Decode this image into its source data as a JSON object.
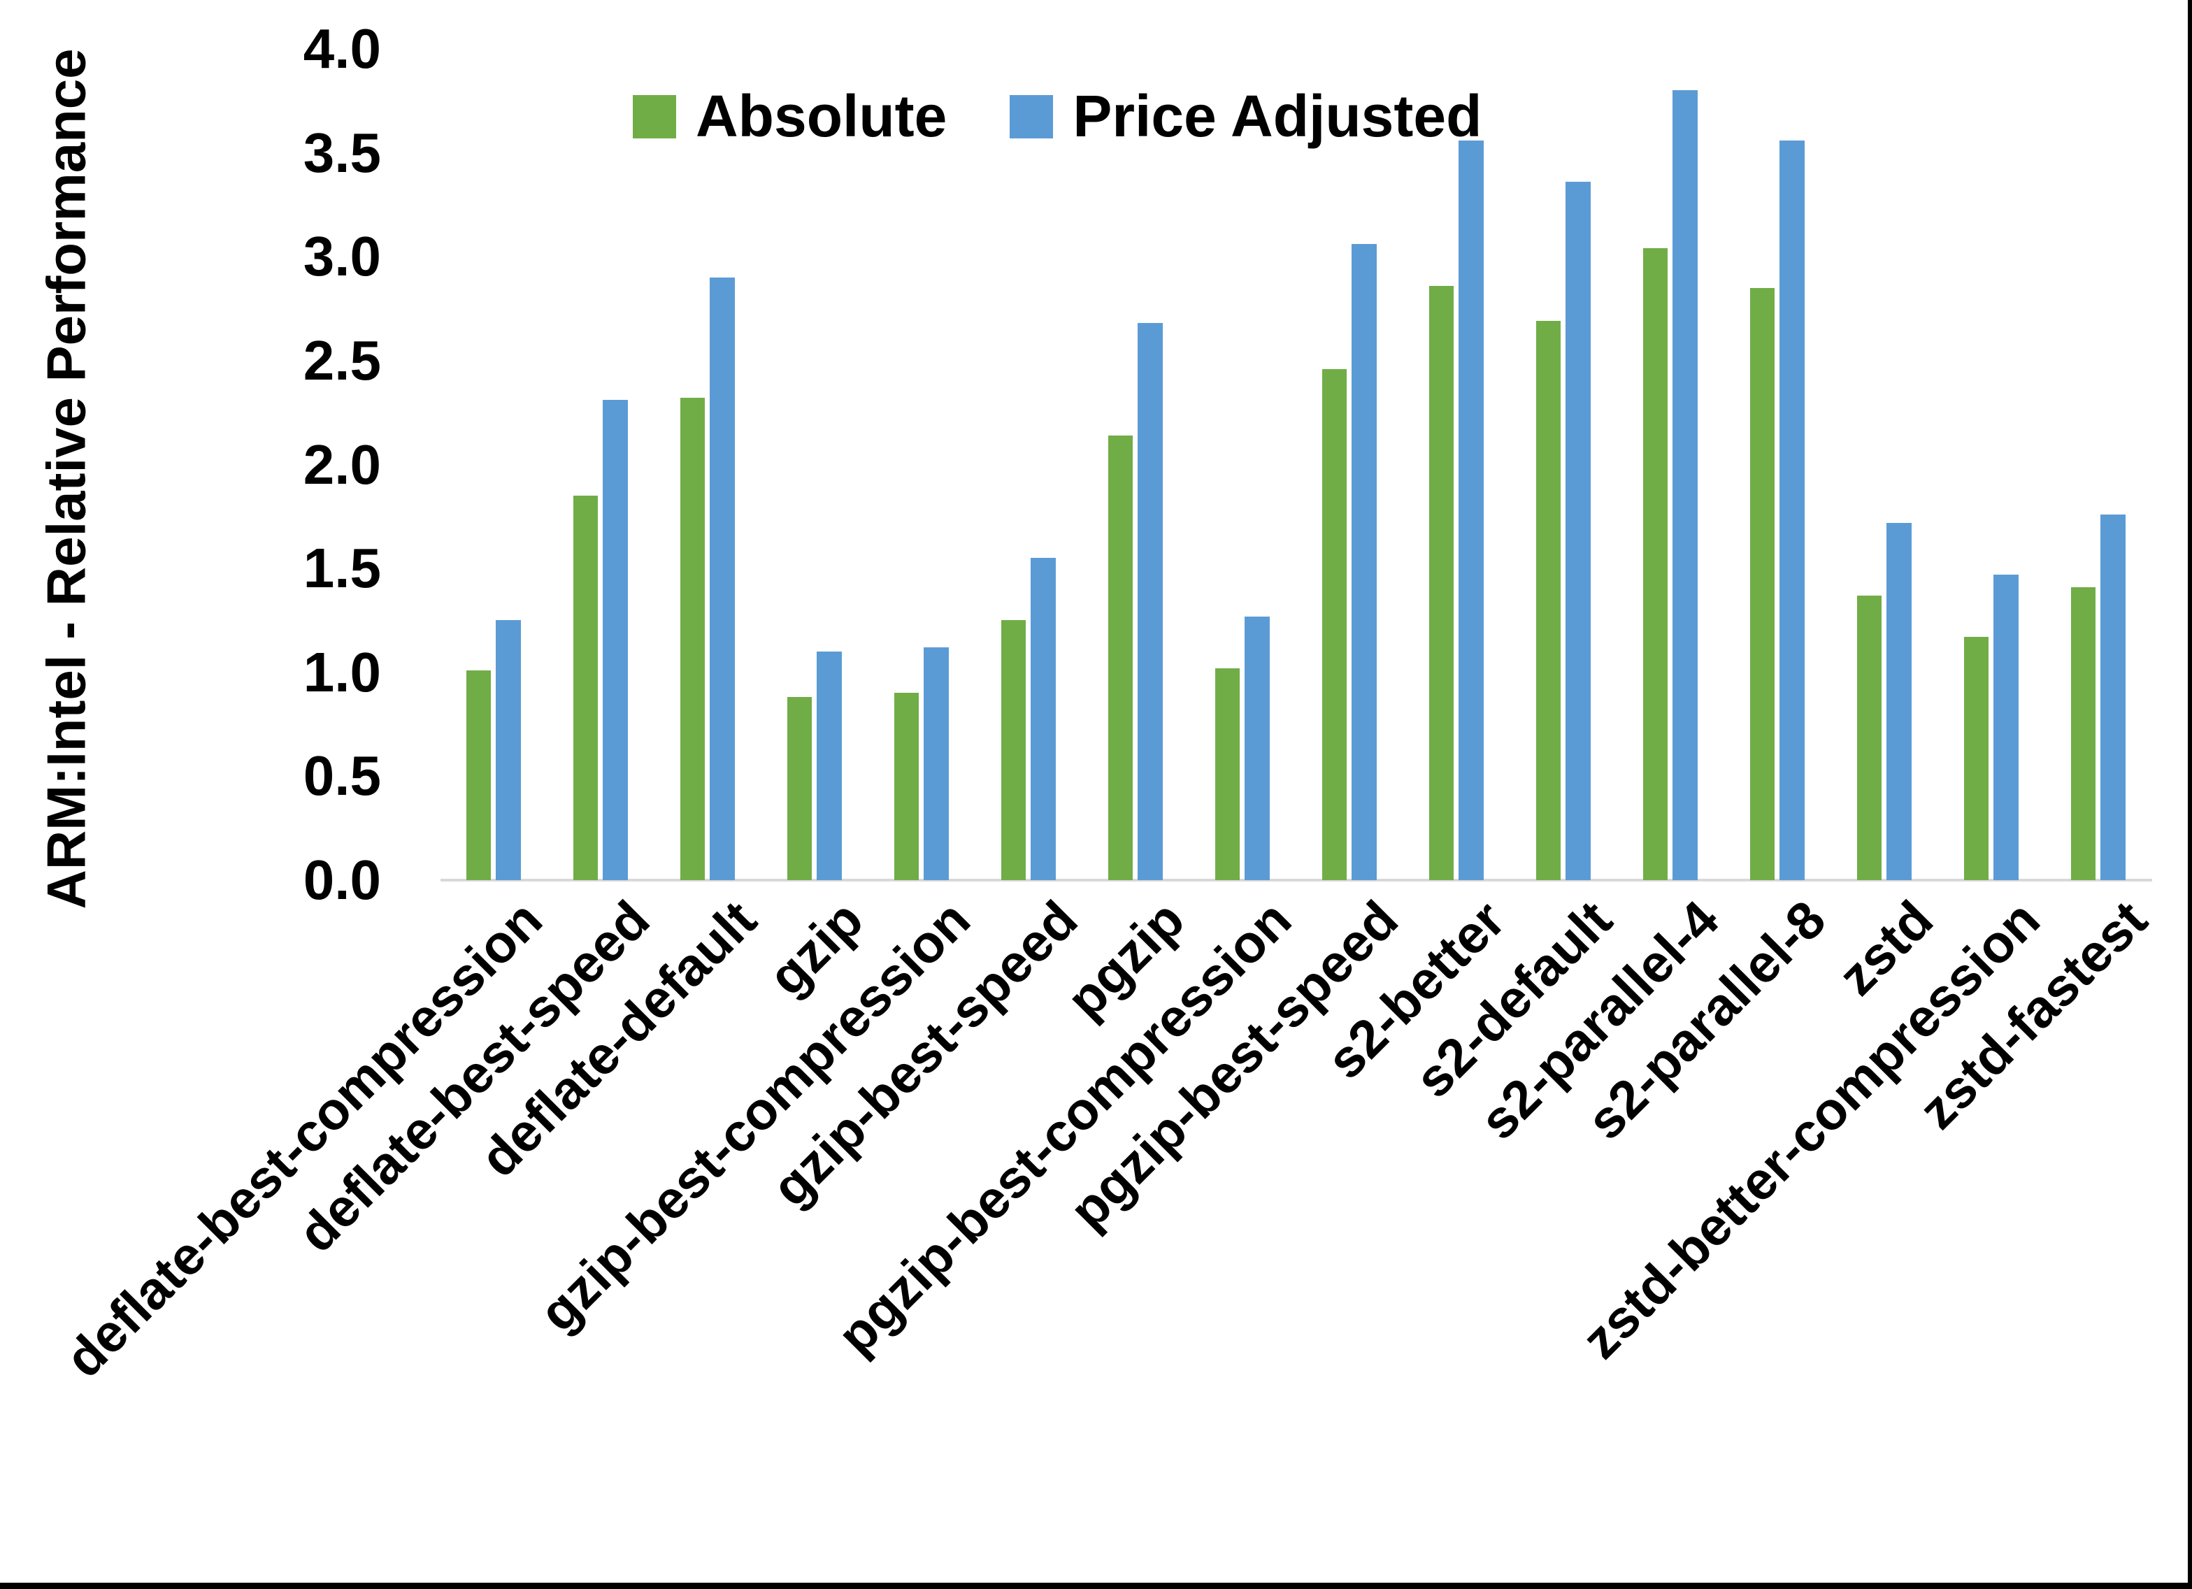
{
  "chart_data": {
    "type": "bar",
    "title": "",
    "xlabel": "",
    "ylabel": "ARM:Intel - Relative Performance",
    "ylim": [
      0.0,
      4.0
    ],
    "ytick_step": 0.5,
    "ytick_labels": [
      "0.0",
      "0.5",
      "1.0",
      "1.5",
      "2.0",
      "2.5",
      "3.0",
      "3.5",
      "4.0"
    ],
    "grid": false,
    "legend_position": "top-center",
    "categories": [
      "deflate-best-compression",
      "deflate-best-speed",
      "deflate-default",
      "gzip",
      "gzip-best-compression",
      "gzip-best-speed",
      "pgzip",
      "pgzip-best-compression",
      "pgzip-best-speed",
      "s2-better",
      "s2-default",
      "s2-parallel-4",
      "s2-parallel-8",
      "zstd",
      "zstd-better-compression",
      "zstd-fastest"
    ],
    "series": [
      {
        "name": "Absolute",
        "color": "#70AD47",
        "values": [
          1.01,
          1.85,
          2.32,
          0.88,
          0.9,
          1.25,
          2.14,
          1.02,
          2.46,
          2.86,
          2.69,
          3.04,
          2.85,
          1.37,
          1.17,
          1.41
        ]
      },
      {
        "name": "Price Adjusted",
        "color": "#5B9BD5",
        "values": [
          1.25,
          2.31,
          2.9,
          1.1,
          1.12,
          1.55,
          2.68,
          1.27,
          3.06,
          3.56,
          3.36,
          3.8,
          3.56,
          1.72,
          1.47,
          1.76
        ]
      }
    ]
  },
  "colors": {
    "background": "#FFFFFF",
    "axis_line": "#D9D9D9",
    "text": "#000000",
    "border_strip": "#000000"
  }
}
